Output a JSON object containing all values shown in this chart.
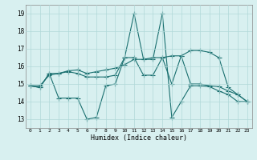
{
  "xlabel": "Humidex (Indice chaleur)",
  "x": [
    0,
    1,
    2,
    3,
    4,
    5,
    6,
    7,
    8,
    9,
    10,
    11,
    12,
    13,
    14,
    15,
    16,
    17,
    18,
    19,
    20,
    21,
    22,
    23
  ],
  "line1": [
    14.9,
    14.8,
    15.6,
    14.2,
    14.2,
    14.2,
    13.0,
    13.1,
    14.9,
    15.0,
    16.5,
    19.0,
    16.4,
    16.4,
    19.0,
    13.1,
    14.0,
    14.9,
    14.9,
    14.85,
    14.6,
    14.4,
    14.0,
    14.0
  ],
  "line2": [
    14.9,
    14.8,
    15.6,
    15.6,
    15.7,
    15.6,
    15.4,
    15.4,
    15.4,
    15.5,
    16.5,
    16.5,
    15.5,
    15.5,
    16.5,
    15.0,
    16.6,
    15.0,
    15.0,
    14.9,
    14.85,
    14.6,
    14.4,
    14.0
  ],
  "line3": [
    14.9,
    14.9,
    15.5,
    15.6,
    15.75,
    15.8,
    15.6,
    15.7,
    15.8,
    15.9,
    16.1,
    16.4,
    16.4,
    16.5,
    16.5,
    16.6,
    16.6,
    16.9,
    16.9,
    16.8,
    16.5,
    14.8,
    14.4,
    14.0
  ],
  "ylim": [
    12.5,
    19.5
  ],
  "yticks": [
    13,
    14,
    15,
    16,
    17,
    18,
    19
  ],
  "xticks": [
    0,
    1,
    2,
    3,
    4,
    5,
    6,
    7,
    8,
    9,
    10,
    11,
    12,
    13,
    14,
    15,
    16,
    17,
    18,
    19,
    20,
    21,
    22,
    23
  ],
  "line_color": "#1a7070",
  "bg_color": "#d8f0f0",
  "grid_color": "#b0d8d8"
}
